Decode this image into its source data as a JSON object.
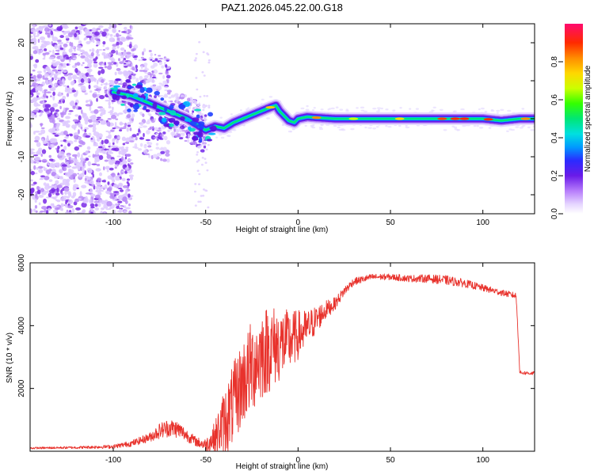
{
  "title": "PAZ1.2026.045.22.00.G18",
  "chart_data": [
    {
      "type": "heatmap",
      "title": "PAZ1.2026.045.22.00.G18",
      "xlabel": "Height of straight line (km)",
      "ylabel": "Frequency (Hz)",
      "xlim": [
        -145,
        128
      ],
      "ylim": [
        -25,
        25
      ],
      "xticks": [
        -100,
        -50,
        0,
        50,
        100
      ],
      "yticks": [
        -20,
        -10,
        0,
        10,
        20
      ],
      "colorbar": {
        "label": "Normalized spectral amplitude",
        "range": [
          0,
          1
        ],
        "ticks": [
          0.0,
          0.2,
          0.4,
          0.6,
          0.8
        ]
      },
      "ridge": {
        "x": [
          -100,
          -90,
          -80,
          -70,
          -60,
          -55,
          -50,
          -45,
          -40,
          -35,
          -30,
          -25,
          -20,
          -15,
          -12,
          -10,
          -8,
          -5,
          -2,
          0,
          5,
          10,
          20,
          40,
          60,
          80,
          100,
          110,
          120,
          128
        ],
        "y": [
          7,
          6,
          4,
          2,
          0,
          -1.5,
          -3,
          -2,
          -2.5,
          -1,
          0,
          1,
          2,
          3,
          3.5,
          2,
          1,
          -0.5,
          -1,
          0,
          0.5,
          0.3,
          0,
          0,
          0,
          0,
          0,
          -0.5,
          0,
          0
        ]
      },
      "noise_region_x": [
        -145,
        -90
      ],
      "scatter_region_x": [
        -90,
        -50
      ]
    },
    {
      "type": "line",
      "xlabel": "Height of straight line (km)",
      "ylabel": "SNR (10 * v/v)",
      "xlim": [
        -145,
        128
      ],
      "ylim": [
        0,
        6000
      ],
      "xticks": [
        -100,
        -50,
        0,
        50,
        100
      ],
      "yticks": [
        2000,
        4000,
        6000
      ],
      "color": "#e8322c",
      "series": [
        {
          "name": "SNR",
          "x": [
            -145,
            -120,
            -100,
            -90,
            -80,
            -75,
            -70,
            -65,
            -60,
            -55,
            -50,
            -45,
            -40,
            -35,
            -30,
            -25,
            -20,
            -15,
            -10,
            -5,
            0,
            5,
            10,
            15,
            20,
            25,
            30,
            40,
            50,
            60,
            70,
            80,
            90,
            100,
            110,
            118,
            119,
            120,
            128
          ],
          "y": [
            100,
            120,
            150,
            250,
            450,
            650,
            750,
            700,
            500,
            300,
            200,
            450,
            900,
            1500,
            2200,
            2700,
            3100,
            3300,
            3400,
            3500,
            3700,
            3900,
            4200,
            4500,
            4700,
            5100,
            5400,
            5550,
            5550,
            5500,
            5500,
            5450,
            5350,
            5200,
            5050,
            4950,
            3800,
            2500,
            2480
          ],
          "noise_amplitude": [
            30,
            40,
            60,
            100,
            150,
            250,
            300,
            280,
            200,
            150,
            200,
            500,
            1100,
            1300,
            1400,
            1500,
            1500,
            1400,
            1200,
            1000,
            800,
            600,
            450,
            300,
            200,
            150,
            120,
            100,
            100,
            110,
            130,
            150,
            130,
            110,
            100,
            100,
            80,
            60,
            60
          ]
        }
      ]
    }
  ]
}
